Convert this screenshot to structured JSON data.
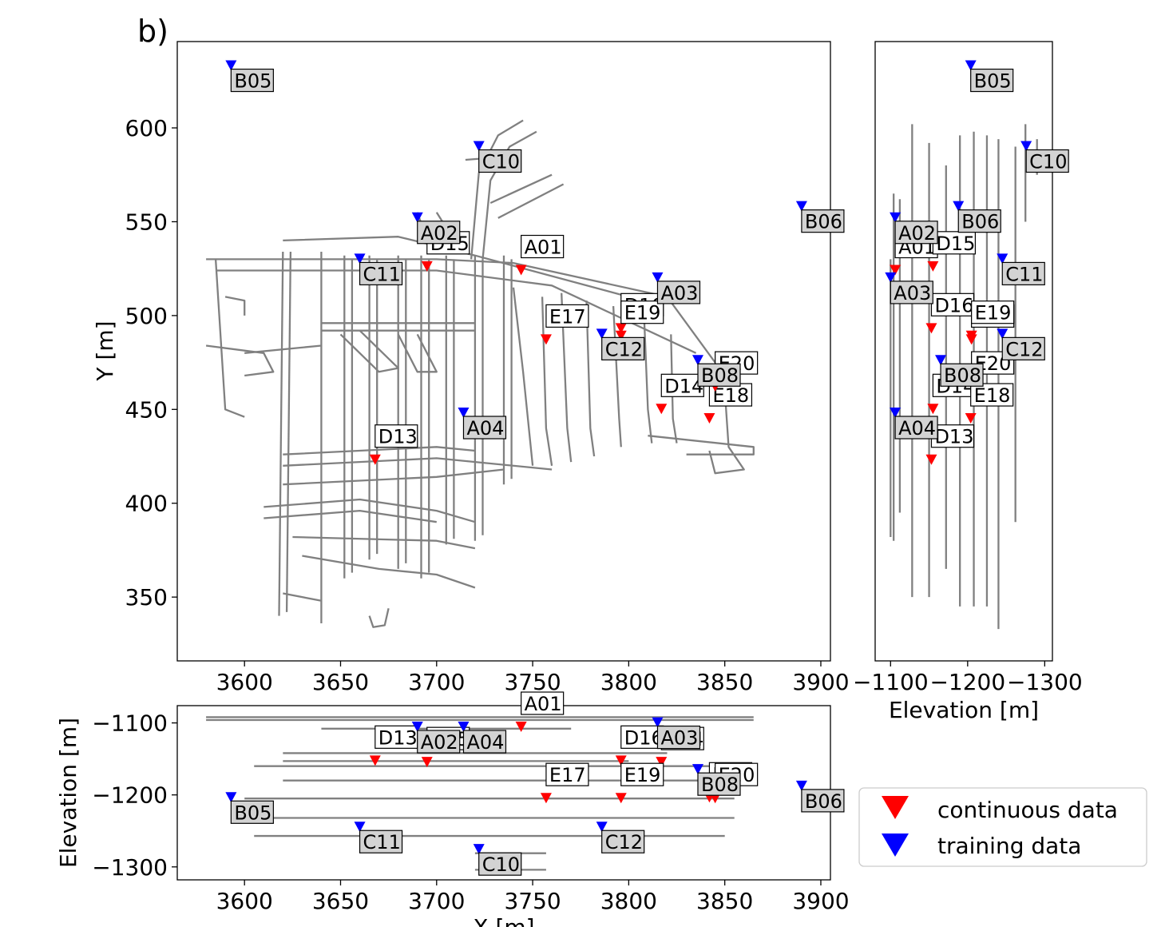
{
  "panel_label": "b)",
  "chart_data": [
    {
      "type": "scatter",
      "panel": "map",
      "xlabel": "",
      "ylabel": "Y [m]",
      "xlim": [
        3565,
        3905
      ],
      "ylim": [
        316,
        646
      ],
      "xticks": [
        3600,
        3650,
        3700,
        3750,
        3800,
        3850,
        3900
      ],
      "yticks": [
        350,
        400,
        450,
        500,
        550,
        600
      ],
      "grid": false,
      "series": [
        {
          "name": "continuous data",
          "color": "#ff0000",
          "points": [
            {
              "label": "A01",
              "x": 3744,
              "y": 524
            },
            {
              "label": "D15",
              "x": 3695,
              "y": 526
            },
            {
              "label": "E17",
              "x": 3757,
              "y": 487
            },
            {
              "label": "D16",
              "x": 3796,
              "y": 493
            },
            {
              "label": "E19",
              "x": 3796,
              "y": 489
            },
            {
              "label": "D14",
              "x": 3817,
              "y": 450
            },
            {
              "label": "E18",
              "x": 3842,
              "y": 445
            },
            {
              "label": "E20",
              "x": 3845,
              "y": 462
            },
            {
              "label": "D13",
              "x": 3668,
              "y": 423
            }
          ]
        },
        {
          "name": "training data",
          "color": "#0000ff",
          "points": [
            {
              "label": "B05",
              "x": 3593,
              "y": 633
            },
            {
              "label": "C10",
              "x": 3722,
              "y": 590
            },
            {
              "label": "A02",
              "x": 3690,
              "y": 552
            },
            {
              "label": "C11",
              "x": 3660,
              "y": 530
            },
            {
              "label": "A03",
              "x": 3815,
              "y": 520
            },
            {
              "label": "B06",
              "x": 3890,
              "y": 558
            },
            {
              "label": "C12",
              "x": 3786,
              "y": 490
            },
            {
              "label": "B08",
              "x": 3836,
              "y": 476
            },
            {
              "label": "A04",
              "x": 3714,
              "y": 448
            }
          ]
        }
      ]
    },
    {
      "type": "scatter",
      "panel": "elevation-y",
      "xlabel": "Elevation [m]",
      "ylabel": "",
      "xlim": [
        -1080,
        -1310
      ],
      "ylim": [
        316,
        646
      ],
      "xticks": [
        -1100,
        -1200,
        -1300
      ],
      "xtick_labels": [
        "−1100",
        "−1200",
        "−1300"
      ],
      "grid": false,
      "series": [
        {
          "name": "continuous data",
          "color": "#ff0000",
          "points": [
            {
              "label": "A01",
              "x": -1106,
              "y": 524
            },
            {
              "label": "D15",
              "x": -1155,
              "y": 526
            },
            {
              "label": "D16",
              "x": -1153,
              "y": 493
            },
            {
              "label": "E17",
              "x": -1205,
              "y": 487
            },
            {
              "label": "E19",
              "x": -1205,
              "y": 489
            },
            {
              "label": "E20",
              "x": -1205,
              "y": 462
            },
            {
              "label": "D14",
              "x": -1155,
              "y": 450
            },
            {
              "label": "E18",
              "x": -1204,
              "y": 445
            },
            {
              "label": "D13",
              "x": -1153,
              "y": 423
            }
          ]
        },
        {
          "name": "training data",
          "color": "#0000ff",
          "points": [
            {
              "label": "B05",
              "x": -1204,
              "y": 633
            },
            {
              "label": "C10",
              "x": -1276,
              "y": 590
            },
            {
              "label": "A02",
              "x": -1106,
              "y": 552
            },
            {
              "label": "B06",
              "x": -1188,
              "y": 558
            },
            {
              "label": "C11",
              "x": -1245,
              "y": 530
            },
            {
              "label": "A03",
              "x": -1100,
              "y": 520
            },
            {
              "label": "C12",
              "x": -1245,
              "y": 490
            },
            {
              "label": "B08",
              "x": -1165,
              "y": 476
            },
            {
              "label": "A04",
              "x": -1106,
              "y": 448
            }
          ]
        }
      ]
    },
    {
      "type": "scatter",
      "panel": "x-elevation",
      "xlabel": "X [m]",
      "ylabel": "Elevation [m]",
      "xlim": [
        3565,
        3905
      ],
      "ylim": [
        -1318,
        -1076
      ],
      "xticks": [
        3600,
        3650,
        3700,
        3750,
        3800,
        3850,
        3900
      ],
      "yticks": [
        -1100,
        -1200,
        -1300
      ],
      "ytick_labels": [
        "−1100",
        "−1200",
        "−1300"
      ],
      "grid": false,
      "series": [
        {
          "name": "continuous data",
          "color": "#ff0000",
          "points": [
            {
              "label": "A01",
              "x": 3744,
              "y": -1106
            },
            {
              "label": "D13",
              "x": 3668,
              "y": -1153
            },
            {
              "label": "D15",
              "x": 3695,
              "y": -1155
            },
            {
              "label": "D16",
              "x": 3796,
              "y": -1153
            },
            {
              "label": "D14",
              "x": 3817,
              "y": -1155
            },
            {
              "label": "E17",
              "x": 3757,
              "y": -1205
            },
            {
              "label": "E19",
              "x": 3796,
              "y": -1205
            },
            {
              "label": "E18",
              "x": 3842,
              "y": -1204
            },
            {
              "label": "E20",
              "x": 3845,
              "y": -1205
            }
          ]
        },
        {
          "name": "training data",
          "color": "#0000ff",
          "points": [
            {
              "label": "A02",
              "x": 3690,
              "y": -1106
            },
            {
              "label": "A04",
              "x": 3714,
              "y": -1106
            },
            {
              "label": "A03",
              "x": 3815,
              "y": -1100
            },
            {
              "label": "B08",
              "x": 3836,
              "y": -1165
            },
            {
              "label": "B05",
              "x": 3593,
              "y": -1204
            },
            {
              "label": "B06",
              "x": 3890,
              "y": -1188
            },
            {
              "label": "C11",
              "x": 3660,
              "y": -1245
            },
            {
              "label": "C12",
              "x": 3786,
              "y": -1245
            },
            {
              "label": "C10",
              "x": 3722,
              "y": -1276
            }
          ]
        }
      ]
    }
  ],
  "legend": {
    "placement": "lower-right",
    "items": [
      {
        "label": "continuous data",
        "color": "#ff0000"
      },
      {
        "label": "training data",
        "color": "#0000ff"
      }
    ]
  },
  "colors": {
    "continuous": "#ff0000",
    "training": "#0000ff",
    "tunnels": "#808080",
    "label_box_training": "#d3d3d3",
    "label_box_continuous": "#ffffff"
  }
}
